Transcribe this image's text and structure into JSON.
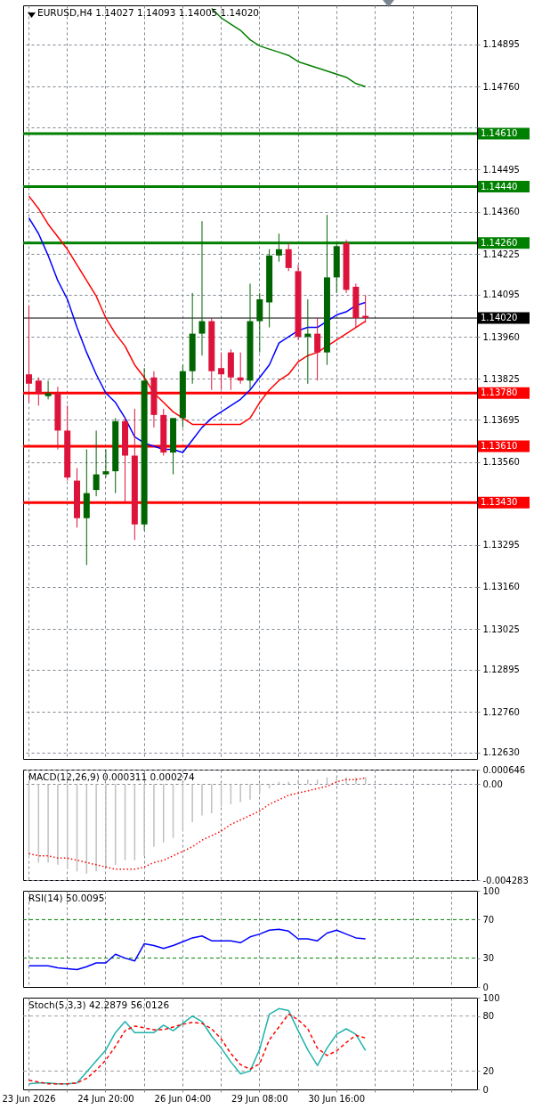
{
  "chart_data": [
    {
      "type": "candlestick",
      "title": "EURUSD,H4 1.14027 1.14093 1.14005 1.14020",
      "categories": [
        null,
        null,
        null,
        null,
        null,
        null,
        null,
        null,
        null,
        null,
        null,
        null,
        null,
        null,
        null,
        null,
        null,
        null,
        null,
        null,
        null,
        null,
        null,
        null,
        null,
        null,
        null,
        null,
        null,
        null,
        null,
        null,
        null,
        null,
        null,
        null
      ],
      "ohlc": [
        [
          1.1384,
          1.1406,
          1.1375,
          1.1381
        ],
        [
          1.1382,
          1.1383,
          1.1374,
          1.1378
        ],
        [
          1.1377,
          1.1382,
          1.1376,
          1.1378
        ],
        [
          1.1378,
          1.138,
          1.136,
          1.1366
        ],
        [
          1.1366,
          1.1374,
          1.135,
          1.1351
        ],
        [
          1.135,
          1.1354,
          1.1335,
          1.1338
        ],
        [
          1.1338,
          1.136,
          1.1323,
          1.1346
        ],
        [
          1.1347,
          1.1366,
          1.1345,
          1.1352
        ],
        [
          1.1352,
          1.136,
          1.1351,
          1.1353
        ],
        [
          1.1353,
          1.137,
          1.1346,
          1.1369
        ],
        [
          1.1369,
          1.137,
          1.1343,
          1.1358
        ],
        [
          1.1358,
          1.1373,
          1.1331,
          1.1336
        ],
        [
          1.1336,
          1.1386,
          1.1334,
          1.1382
        ],
        [
          1.1383,
          1.1385,
          1.1367,
          1.1371
        ],
        [
          1.1371,
          1.1373,
          1.1358,
          1.1359
        ],
        [
          1.1359,
          1.137,
          1.1352,
          1.137
        ],
        [
          1.137,
          1.1387,
          1.1367,
          1.1385
        ],
        [
          1.1385,
          1.141,
          1.1381,
          1.1397
        ],
        [
          1.1397,
          1.1433,
          1.139,
          1.1401
        ],
        [
          1.1401,
          1.1402,
          1.1379,
          1.1385
        ],
        [
          1.1386,
          1.1391,
          1.1379,
          1.1384
        ],
        [
          1.1391,
          1.1392,
          1.1379,
          1.1383
        ],
        [
          1.1383,
          1.1391,
          1.1381,
          1.1382
        ],
        [
          1.1382,
          1.1413,
          1.1379,
          1.1401
        ],
        [
          1.1401,
          1.141,
          1.1391,
          1.1408
        ],
        [
          1.1407,
          1.1424,
          1.1399,
          1.1422
        ],
        [
          1.1422,
          1.1429,
          1.142,
          1.1424
        ],
        [
          1.1424,
          1.1426,
          1.1417,
          1.1418
        ],
        [
          1.1417,
          1.1419,
          1.1395,
          1.1396
        ],
        [
          1.1396,
          1.1408,
          1.1381,
          1.1397
        ],
        [
          1.1397,
          1.1402,
          1.1382,
          1.1391
        ],
        [
          1.1391,
          1.1435,
          1.1387,
          1.1415
        ],
        [
          1.1415,
          1.1426,
          1.141,
          1.1425
        ],
        [
          1.1426,
          1.1427,
          1.141,
          1.1411
        ],
        [
          1.1412,
          1.1413,
          1.1399,
          1.1402
        ],
        [
          1.14027,
          1.14093,
          1.14005,
          1.1402
        ]
      ],
      "colors": [
        "#dc143c",
        "#dc143c",
        "#006400",
        "#dc143c",
        "#dc143c",
        "#dc143c",
        "#006400",
        "#006400",
        "#006400",
        "#006400",
        "#dc143c",
        "#dc143c",
        "#006400",
        "#dc143c",
        "#dc143c",
        "#006400",
        "#006400",
        "#006400",
        "#006400",
        "#dc143c",
        "#dc143c",
        "#dc143c",
        "#dc143c",
        "#006400",
        "#006400",
        "#006400",
        "#006400",
        "#dc143c",
        "#dc143c",
        "#006400",
        "#dc143c",
        "#006400",
        "#006400",
        "#dc143c",
        "#dc143c",
        "#dc143c"
      ],
      "series": [
        {
          "type": "line",
          "color": "#0000ff",
          "values": [
            1.1434,
            1.1429,
            1.1422,
            1.1414,
            1.1408,
            1.1399,
            1.1391,
            1.1384,
            1.1378,
            1.1375,
            1.137,
            1.1364,
            1.1362,
            1.1361,
            1.136,
            1.136,
            1.1359,
            1.1363,
            1.1367,
            1.137,
            1.1372,
            1.1374,
            1.1376,
            1.1379,
            1.1383,
            1.1387,
            1.1394,
            1.1396,
            1.1398,
            1.1399,
            1.1399,
            1.1401,
            1.1403,
            1.1404,
            1.1406,
            1.1407
          ]
        },
        {
          "type": "line",
          "color": "#ff0000",
          "values": [
            1.1441,
            1.1437,
            1.1432,
            1.1428,
            1.1424,
            1.1419,
            1.1414,
            1.1409,
            1.1402,
            1.1397,
            1.1393,
            1.1387,
            1.1383,
            1.1378,
            1.1375,
            1.1372,
            1.137,
            1.1368,
            1.1368,
            1.1368,
            1.1368,
            1.1368,
            1.1368,
            1.137,
            1.1375,
            1.1379,
            1.1382,
            1.1384,
            1.1388,
            1.139,
            1.1391,
            1.1393,
            1.1395,
            1.1397,
            1.1399,
            1.1401
          ]
        },
        {
          "type": "line",
          "color": "#008000",
          "values": [
            null,
            null,
            null,
            null,
            null,
            null,
            null,
            null,
            null,
            null,
            null,
            null,
            null,
            null,
            null,
            null,
            null,
            null,
            null,
            1.1501,
            1.1498,
            1.1496,
            1.1494,
            1.1491,
            1.1489,
            1.1488,
            1.1487,
            1.1486,
            1.1484,
            1.1483,
            1.1482,
            1.1481,
            1.148,
            1.1479,
            1.1477,
            1.1476
          ]
        }
      ],
      "ylim": [
        1.1261,
        1.1502
      ],
      "yticks": [
        {
          "value": 1.1263,
          "label": "1.12630"
        },
        {
          "value": 1.1276,
          "label": "1.12760"
        },
        1.12895,
        1.13025,
        {
          "value": 1.1316,
          "label": "1.13160"
        },
        1.13295,
        {
          "value": 1.1343,
          "label": null
        },
        {
          "value": 1.1356,
          "label": "1.13560"
        },
        1.13695,
        1.13825,
        {
          "value": 1.1396,
          "label": "1.13960"
        },
        1.14095,
        1.14225,
        {
          "value": 1.1436,
          "label": "1.14360"
        },
        1.14495,
        {
          "value": 1.1463,
          "label": null
        },
        {
          "value": 1.1476,
          "label": "1.14760"
        },
        1.14895
      ],
      "grid": true,
      "ref_lines": [
        {
          "axis": "y",
          "value": 1.1461,
          "label": "1.14610",
          "color": "#008000"
        },
        {
          "axis": "y",
          "value": 1.1444,
          "label": "1.14440",
          "color": "#008000"
        },
        {
          "axis": "y",
          "value": 1.1426,
          "label": "1.14260",
          "color": "#008000"
        },
        {
          "axis": "y",
          "value": 1.1402,
          "label": "1.14020",
          "color": "#000000"
        },
        {
          "axis": "y",
          "value": 1.1378,
          "label": "1.13780",
          "color": "#ff0000"
        },
        {
          "axis": "y",
          "value": 1.1361,
          "label": "1.13610",
          "color": "#ff0000"
        },
        {
          "axis": "y",
          "value": 1.1343,
          "label": "1.13430",
          "color": "#ff0000"
        }
      ],
      "tick_labels": "y"
    },
    {
      "type": "bar",
      "title": "MACD(12,26,9) 0.000311 0.000274",
      "categories": [
        null,
        null,
        null,
        null,
        null,
        null,
        null,
        null,
        null,
        null,
        null,
        null,
        null,
        null,
        null,
        null,
        null,
        null,
        null,
        null,
        null,
        null,
        null,
        null,
        null,
        null,
        null,
        null,
        null,
        null,
        null,
        null,
        null,
        null,
        null,
        null
      ],
      "series": [
        {
          "type": "bar",
          "color": "#c0c0c0",
          "values": [
            -0.0033,
            -0.0035,
            -0.0035,
            -0.0036,
            -0.0038,
            -0.0039,
            -0.004,
            -0.0039,
            -0.0037,
            -0.0036,
            -0.0034,
            -0.0034,
            -0.0032,
            -0.0028,
            -0.0026,
            -0.0024,
            -0.0021,
            -0.0017,
            -0.0014,
            -0.0013,
            -0.001,
            -0.0009,
            -0.0008,
            -0.0007,
            -0.0004,
            -0.0002,
            0.0001,
            0.0001,
            0.0002,
            0.0002,
            0.0002,
            0.0003,
            0.0003,
            0.0003,
            0.0003,
            0.000311
          ]
        },
        {
          "type": "line",
          "color": "#ff0000",
          "line_style": "dotted",
          "values": [
            -0.0031,
            -0.0032,
            -0.0032,
            -0.0033,
            -0.0033,
            -0.0034,
            -0.0035,
            -0.0036,
            -0.0037,
            -0.0038,
            -0.0038,
            -0.0038,
            -0.0037,
            -0.0035,
            -0.0034,
            -0.0032,
            -0.003,
            -0.0028,
            -0.0025,
            -0.0023,
            -0.0021,
            -0.0018,
            -0.0016,
            -0.0014,
            -0.0012,
            -0.0009,
            -0.0007,
            -0.0005,
            -0.0004,
            -0.0003,
            -0.0002,
            -0.0001,
            0.0001,
            0.0002,
            0.0002,
            0.000274
          ]
        }
      ],
      "ylim": [
        -0.004283,
        0.000646
      ],
      "yticks": [
        -0.004283,
        {
          "value": 0,
          "label": "0.00"
        },
        0.000646
      ],
      "grid": true,
      "tick_labels": "y"
    },
    {
      "type": "line",
      "title": "RSI(14) 50.0095",
      "categories": [
        null,
        null,
        null,
        null,
        null,
        null,
        null,
        null,
        null,
        null,
        null,
        null,
        null,
        null,
        null,
        null,
        null,
        null,
        null,
        null,
        null,
        null,
        null,
        null,
        null,
        null,
        null,
        null,
        null,
        null,
        null,
        null,
        null,
        null,
        null,
        null
      ],
      "series": [
        {
          "color": "#0000ff",
          "values": [
            22,
            22,
            22,
            20,
            19,
            18,
            21,
            25,
            25,
            34,
            30,
            27,
            45,
            43,
            40,
            43,
            47,
            51,
            53,
            48,
            48,
            48,
            46,
            52,
            55,
            59,
            60,
            58,
            50,
            50,
            48,
            56,
            59,
            55,
            51,
            50.0095
          ]
        }
      ],
      "ylim": [
        0,
        100
      ],
      "yticks": [
        0,
        30,
        70,
        100
      ],
      "grid": "x",
      "ref_lines": [
        {
          "axis": "y",
          "value": 70,
          "color": "#008000",
          "line_style": "dashed"
        },
        {
          "axis": "y",
          "value": 30,
          "color": "#008000",
          "line_style": "dashed"
        }
      ],
      "tick_labels": "y"
    },
    {
      "type": "line",
      "title": "Stoch(5,3,3) 42.2879 56.0126",
      "categories": [
        "23 Jun 2026",
        null,
        null,
        null,
        null,
        null,
        null,
        null,
        "24 Jun 20:00",
        null,
        null,
        null,
        null,
        null,
        null,
        null,
        "26 Jun 04:00",
        null,
        null,
        null,
        null,
        null,
        null,
        null,
        "29 Jun 08:00",
        null,
        null,
        null,
        null,
        null,
        null,
        null,
        "30 Jun 16:00",
        null,
        null,
        null
      ],
      "series": [
        {
          "color": "#20b2aa",
          "values": [
            6,
            7,
            7,
            6,
            6,
            7,
            19,
            31,
            43,
            62,
            74,
            62,
            62,
            62,
            70,
            64,
            72,
            80,
            74,
            58,
            45,
            30,
            17,
            20,
            44,
            82,
            88,
            86,
            64,
            43,
            26,
            45,
            60,
            66,
            60,
            42.2879
          ]
        },
        {
          "color": "#ff0000",
          "line_style": "dashed",
          "values": [
            10,
            8,
            6,
            6,
            6,
            7,
            12,
            21,
            32,
            47,
            64,
            69,
            67,
            65,
            65,
            68,
            71,
            73,
            72,
            66,
            55,
            39,
            27,
            22,
            28,
            54,
            68,
            82,
            76,
            66,
            45,
            37,
            42,
            51,
            59,
            56.0126
          ]
        }
      ],
      "ylim": [
        0,
        100
      ],
      "yticks": [
        0,
        20,
        80,
        100
      ],
      "grid": "x",
      "ref_lines": [
        {
          "axis": "y",
          "value": 80,
          "color": "#a0a0a0",
          "line_style": "dashed"
        },
        {
          "axis": "y",
          "value": 20,
          "color": "#a0a0a0",
          "line_style": "dashed"
        }
      ]
    }
  ]
}
